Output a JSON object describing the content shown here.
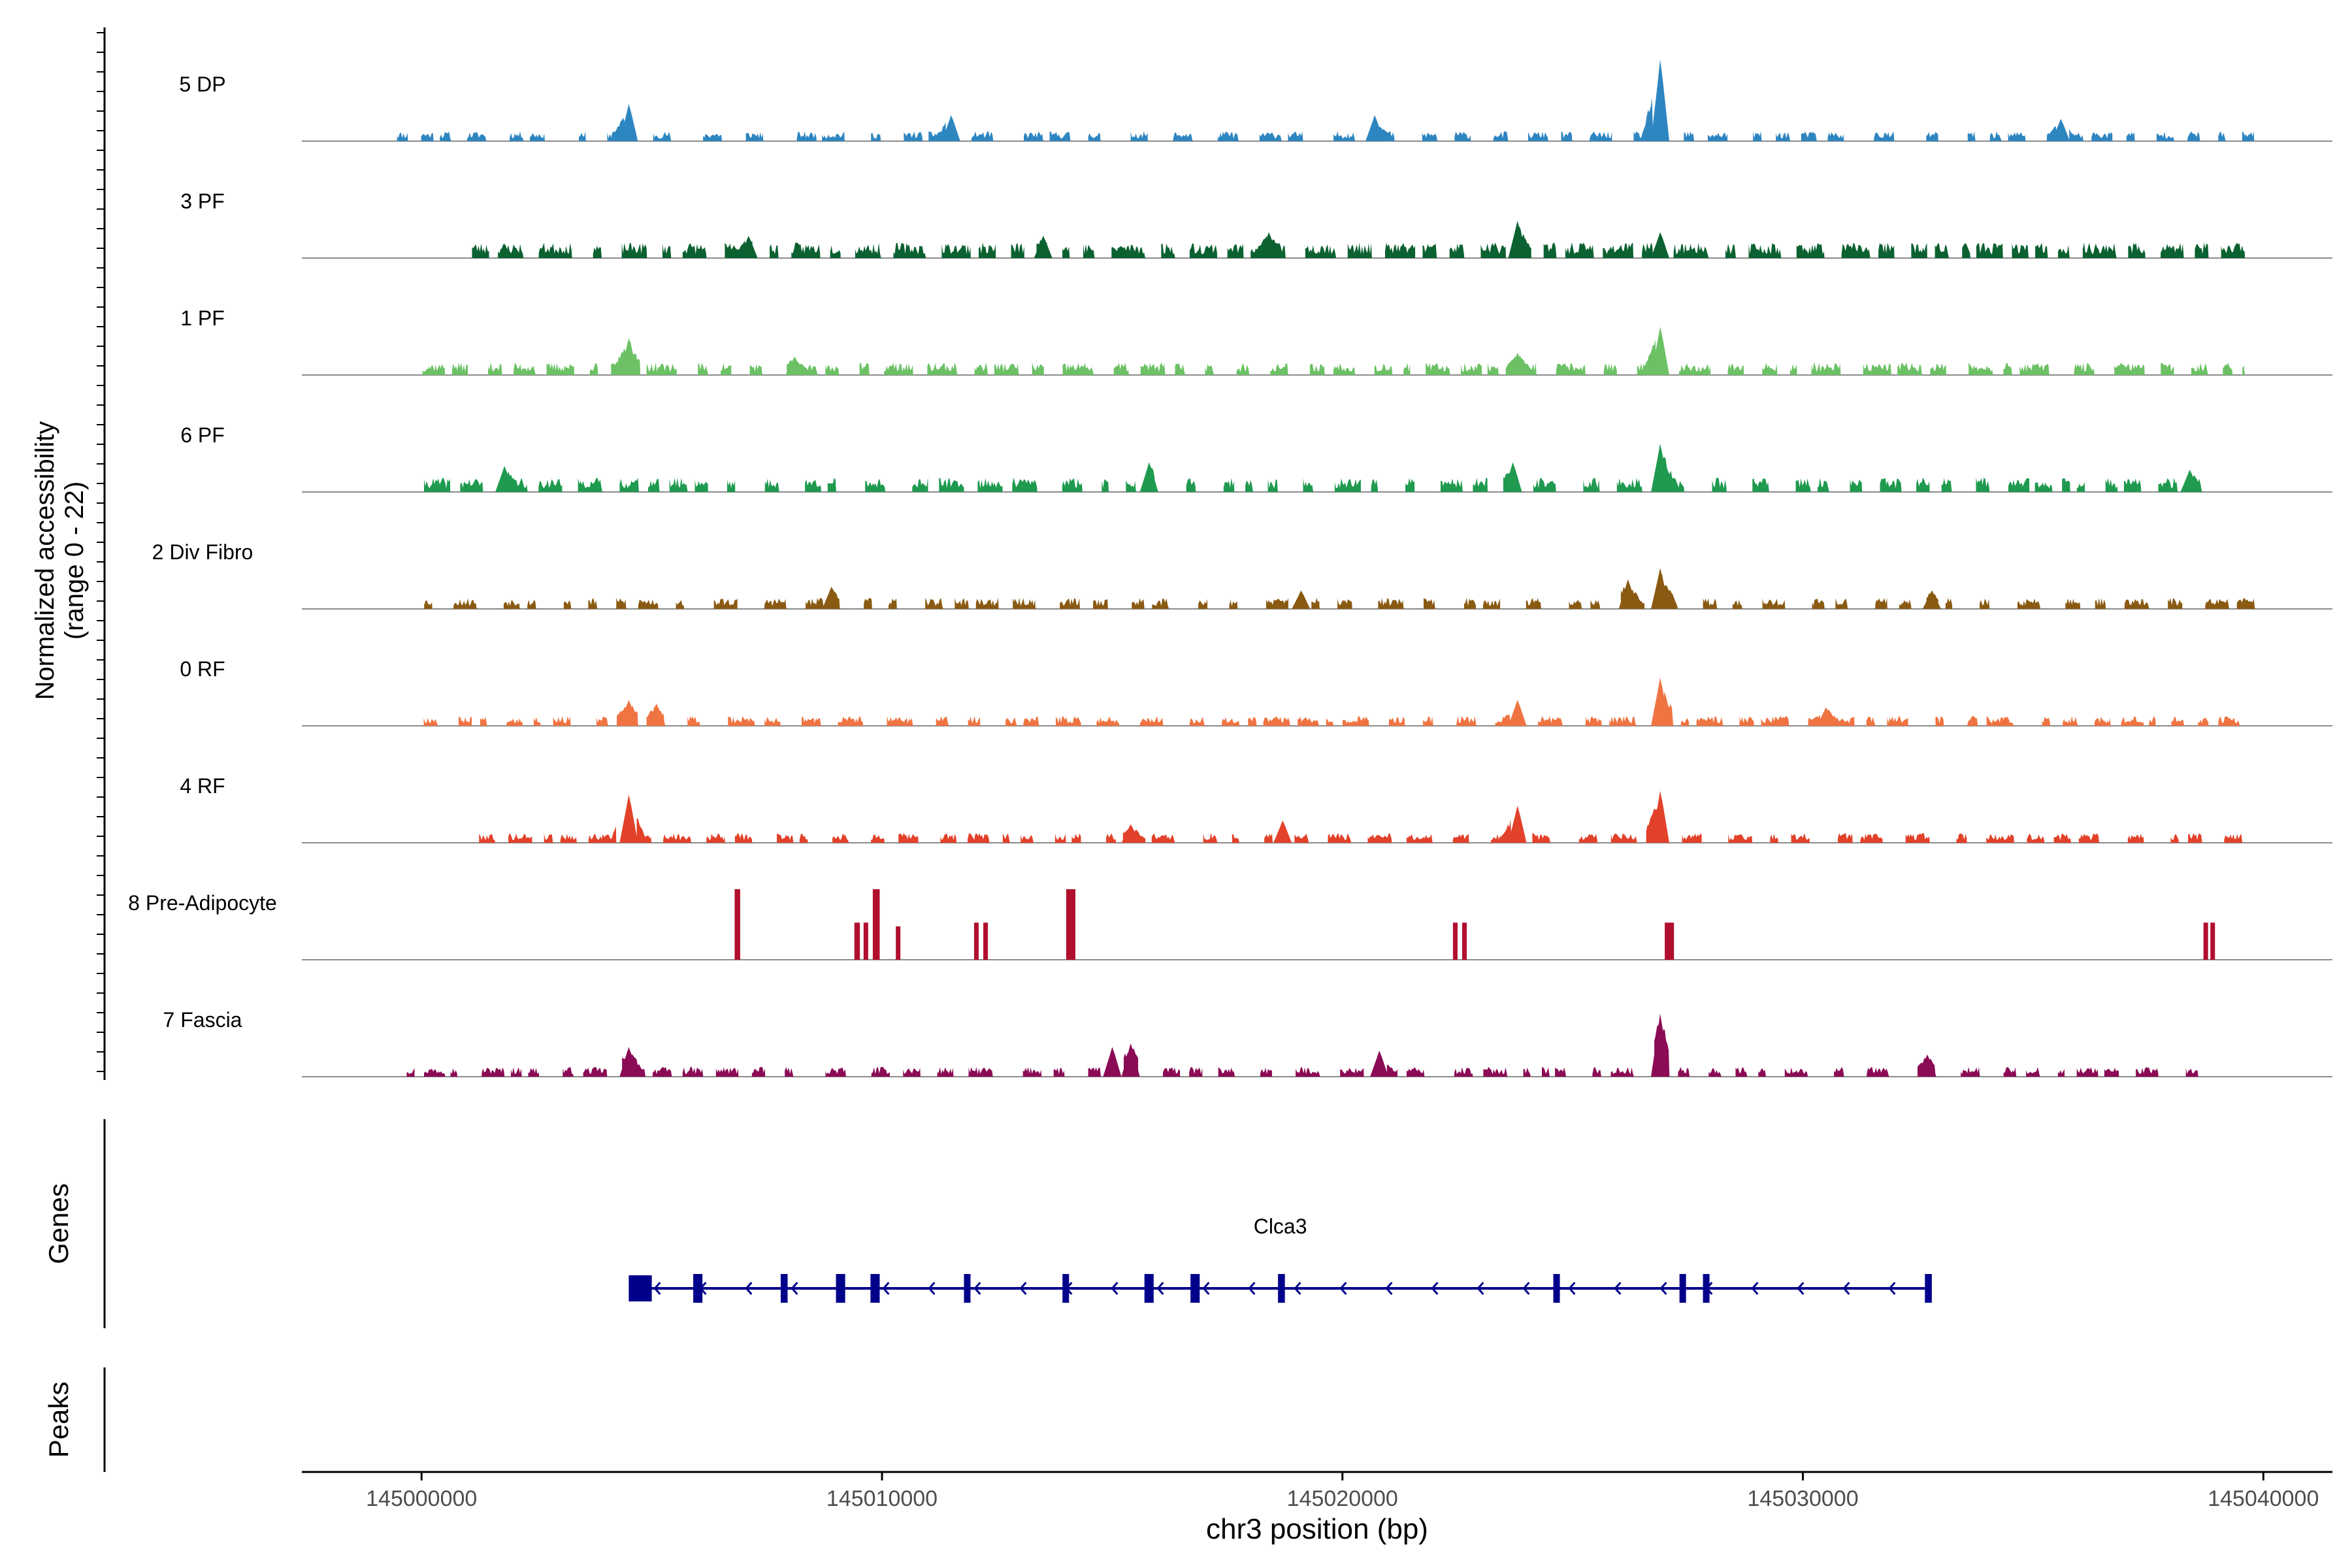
{
  "chart_data": {
    "type": "area",
    "title": "",
    "ylabel_line1": "Normalized accessibility",
    "ylabel_line2": "(range 0 - 22)",
    "ylim": [
      0,
      22
    ],
    "xlabel": "chr3 position (bp)",
    "xlim": [
      144997400,
      145041500
    ],
    "xticks": [
      145000000,
      145010000,
      145020000,
      145030000,
      145040000
    ],
    "xtick_labels": [
      "145000000",
      "145010000",
      "145020000",
      "145030000",
      "145040000"
    ],
    "tracks": [
      {
        "name": "5 DP",
        "color": "#2e86c1",
        "range": [
          144999200,
          145039800
        ],
        "base": 2.2,
        "density": 0.45,
        "seed": 11,
        "peaks": [
          [
            145004500,
            10
          ],
          [
            145026900,
            22
          ],
          [
            145035600,
            6
          ],
          [
            145011500,
            7
          ],
          [
            145020700,
            7
          ]
        ]
      },
      {
        "name": "3 PF",
        "color": "#0b6130",
        "range": [
          145000900,
          145039600
        ],
        "base": 3.5,
        "density": 0.8,
        "seed": 23,
        "peaks": [
          [
            145023800,
            10
          ],
          [
            145007100,
            6
          ],
          [
            145013500,
            6
          ],
          [
            145018400,
            7
          ],
          [
            145026900,
            7
          ]
        ]
      },
      {
        "name": "1 PF",
        "color": "#6cc165",
        "range": [
          144999800,
          145039600
        ],
        "base": 2.8,
        "density": 0.7,
        "seed": 37,
        "peaks": [
          [
            145004500,
            10
          ],
          [
            145026900,
            13
          ],
          [
            145023800,
            6
          ],
          [
            145008100,
            5
          ]
        ]
      },
      {
        "name": "6 PF",
        "color": "#1f9a4f",
        "range": [
          144999800,
          145038900
        ],
        "base": 3.2,
        "density": 0.55,
        "seed": 41,
        "peaks": [
          [
            145026900,
            13
          ],
          [
            145023700,
            8
          ],
          [
            145015800,
            8
          ],
          [
            145001800,
            7
          ],
          [
            145038400,
            6
          ]
        ]
      },
      {
        "name": "2 Div Fibro",
        "color": "#8a5a12",
        "range": [
          144999800,
          145039900
        ],
        "base": 2.5,
        "density": 0.55,
        "seed": 53,
        "peaks": [
          [
            145026900,
            11
          ],
          [
            145026200,
            8
          ],
          [
            145008900,
            6
          ],
          [
            145032800,
            5
          ],
          [
            145019100,
            5
          ]
        ]
      },
      {
        "name": "0 RF",
        "color": "#f07442",
        "range": [
          144999800,
          145039900
        ],
        "base": 2.2,
        "density": 0.6,
        "seed": 67,
        "peaks": [
          [
            145026900,
            13
          ],
          [
            145023800,
            7
          ],
          [
            145004500,
            7
          ],
          [
            145005100,
            6
          ],
          [
            145030500,
            5
          ]
        ]
      },
      {
        "name": "4 RF",
        "color": "#e2412a",
        "range": [
          145001000,
          145039900
        ],
        "base": 2.2,
        "density": 0.6,
        "seed": 79,
        "peaks": [
          [
            145004500,
            13
          ],
          [
            145023800,
            10
          ],
          [
            145026900,
            14
          ],
          [
            145018700,
            6
          ],
          [
            145015400,
            5
          ]
        ]
      },
      {
        "name": "8 Pre-Adipocyte",
        "color": "#b10f2e",
        "range": [
          145006800,
          145038900
        ],
        "base": 0,
        "density": 0,
        "seed": 83,
        "bars": [
          [
            145006800,
            145006920,
            19
          ],
          [
            145009400,
            145009520,
            10
          ],
          [
            145009600,
            145009700,
            10
          ],
          [
            145009800,
            145009950,
            19
          ],
          [
            145010300,
            145010400,
            9
          ],
          [
            145012000,
            145012100,
            10
          ],
          [
            145012200,
            145012300,
            10
          ],
          [
            145014000,
            145014200,
            19
          ],
          [
            145022400,
            145022500,
            10
          ],
          [
            145022600,
            145022700,
            10
          ],
          [
            145027000,
            145027200,
            10
          ],
          [
            145038700,
            145038800,
            10
          ],
          [
            145038850,
            145038950,
            10
          ]
        ]
      },
      {
        "name": "7 Fascia",
        "color": "#8b0b55",
        "range": [
          144999400,
          145038700
        ],
        "base": 2.2,
        "density": 0.5,
        "seed": 97,
        "peaks": [
          [
            145026900,
            17
          ],
          [
            145015400,
            9
          ],
          [
            145015000,
            8
          ],
          [
            145004500,
            8
          ],
          [
            145020800,
            7
          ],
          [
            145032700,
            6
          ]
        ]
      }
    ],
    "gene": {
      "name": "Clca3",
      "color": "#00008b",
      "start": 145004500,
      "end": 145032800,
      "strand": "-",
      "exons": [
        [
          145004500,
          145005000
        ],
        [
          145005900,
          145006100
        ],
        [
          145007800,
          145007950
        ],
        [
          145009000,
          145009200
        ],
        [
          145009750,
          145009950
        ],
        [
          145011780,
          145011850
        ],
        [
          145013920,
          145014050
        ],
        [
          145015700,
          145015900
        ],
        [
          145016700,
          145016900
        ],
        [
          145018600,
          145018750
        ],
        [
          145024580,
          145024640
        ],
        [
          145027320,
          145027420
        ],
        [
          145027830,
          145027940
        ],
        [
          145032650,
          145032800
        ]
      ]
    },
    "panel_labels": {
      "genes": "Genes",
      "peaks": "Peaks"
    }
  }
}
